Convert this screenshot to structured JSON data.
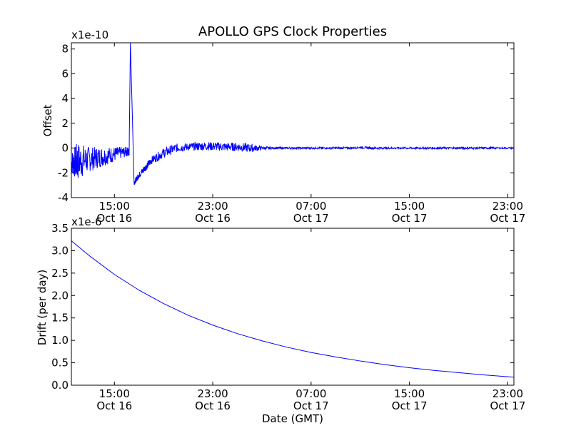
{
  "chart_data": [
    {
      "type": "line",
      "title": "APOLLO GPS Clock Properties",
      "ylabel": "Offset",
      "xlabel": "",
      "y_multiplier": "x1e-10",
      "ylim": [
        -4,
        8.5
      ],
      "yticks": [
        -4,
        -2,
        0,
        2,
        4,
        6,
        8
      ],
      "ytick_labels": [
        "-4",
        "-2",
        "0",
        "2",
        "4",
        "6",
        "8"
      ],
      "xlim_hours": [
        11.5,
        47.5
      ],
      "xticks": [
        {
          "hours": 15,
          "time": "15:00",
          "date": "Oct 16"
        },
        {
          "hours": 23,
          "time": "23:00",
          "date": "Oct 16"
        },
        {
          "hours": 31,
          "time": "07:00",
          "date": "Oct 17"
        },
        {
          "hours": 39,
          "time": "15:00",
          "date": "Oct 17"
        },
        {
          "hours": 47,
          "time": "23:00",
          "date": "Oct 17"
        }
      ],
      "series": [
        {
          "name": "offset",
          "color": "#0000ff",
          "x_hours": [
            11.5,
            12.0,
            13.0,
            14.0,
            15.0,
            16.0,
            16.2,
            16.25,
            16.3,
            16.45,
            16.6,
            17.0,
            17.5,
            18.0,
            19.0,
            20.0,
            21.0,
            22.0,
            23.0,
            24.0,
            25.0,
            26.0,
            27.0,
            28.0,
            29.0,
            30.0,
            31.0,
            32.0,
            33.0,
            34.0,
            35.0,
            36.0,
            37.0,
            38.0,
            39.0,
            40.0,
            41.0,
            42.0,
            43.0,
            44.0,
            45.0,
            46.0,
            47.5
          ],
          "values": [
            -1.2,
            -1.1,
            -0.9,
            -0.7,
            -0.5,
            -0.3,
            -0.3,
            4.0,
            8.5,
            3.0,
            -2.8,
            -2.2,
            -1.6,
            -1.0,
            -0.4,
            0.0,
            0.1,
            0.15,
            0.15,
            0.1,
            0.1,
            0.0,
            0.0,
            0.0,
            0.0,
            0.0,
            0.0,
            0.0,
            0.0,
            0.0,
            0.05,
            0.0,
            0.0,
            0.0,
            0.0,
            0.0,
            0.0,
            0.0,
            0.0,
            0.0,
            0.0,
            0.0,
            0.0
          ],
          "noise_amplitude": [
            0.9,
            1.6,
            1.0,
            0.8,
            0.6,
            0.4,
            0.3,
            0,
            0,
            0,
            0.2,
            0.25,
            0.3,
            0.3,
            0.4,
            0.35,
            0.3,
            0.35,
            0.35,
            0.35,
            0.35,
            0.35,
            0.15,
            0.08,
            0.08,
            0.08,
            0.08,
            0.08,
            0.08,
            0.08,
            0.08,
            0.1,
            0.08,
            0.08,
            0.08,
            0.08,
            0.08,
            0.08,
            0.08,
            0.08,
            0.08,
            0.08,
            0.08
          ]
        }
      ]
    },
    {
      "type": "line",
      "title": "",
      "ylabel": "Drift (per day)",
      "xlabel": "Date (GMT)",
      "y_multiplier": "x1e-6",
      "ylim": [
        0.0,
        3.5
      ],
      "yticks": [
        0.0,
        0.5,
        1.0,
        1.5,
        2.0,
        2.5,
        3.0,
        3.5
      ],
      "ytick_labels": [
        "0.0",
        "0.5",
        "1.0",
        "1.5",
        "2.0",
        "2.5",
        "3.0",
        "3.5"
      ],
      "xlim_hours": [
        11.5,
        47.5
      ],
      "xticks": [
        {
          "hours": 15,
          "time": "15:00",
          "date": "Oct 16"
        },
        {
          "hours": 23,
          "time": "23:00",
          "date": "Oct 16"
        },
        {
          "hours": 31,
          "time": "07:00",
          "date": "Oct 17"
        },
        {
          "hours": 39,
          "time": "15:00",
          "date": "Oct 17"
        },
        {
          "hours": 47,
          "time": "23:00",
          "date": "Oct 17"
        }
      ],
      "series": [
        {
          "name": "drift",
          "color": "#0000ff",
          "x_hours": [
            11.5,
            13.0,
            15.0,
            17.0,
            19.0,
            21.0,
            23.0,
            25.0,
            27.0,
            29.0,
            31.0,
            33.0,
            35.0,
            37.0,
            39.0,
            41.0,
            43.0,
            45.0,
            47.5
          ],
          "values": [
            3.22,
            2.88,
            2.47,
            2.12,
            1.82,
            1.56,
            1.34,
            1.15,
            0.99,
            0.85,
            0.73,
            0.63,
            0.54,
            0.46,
            0.39,
            0.33,
            0.28,
            0.23,
            0.18
          ]
        }
      ]
    }
  ]
}
